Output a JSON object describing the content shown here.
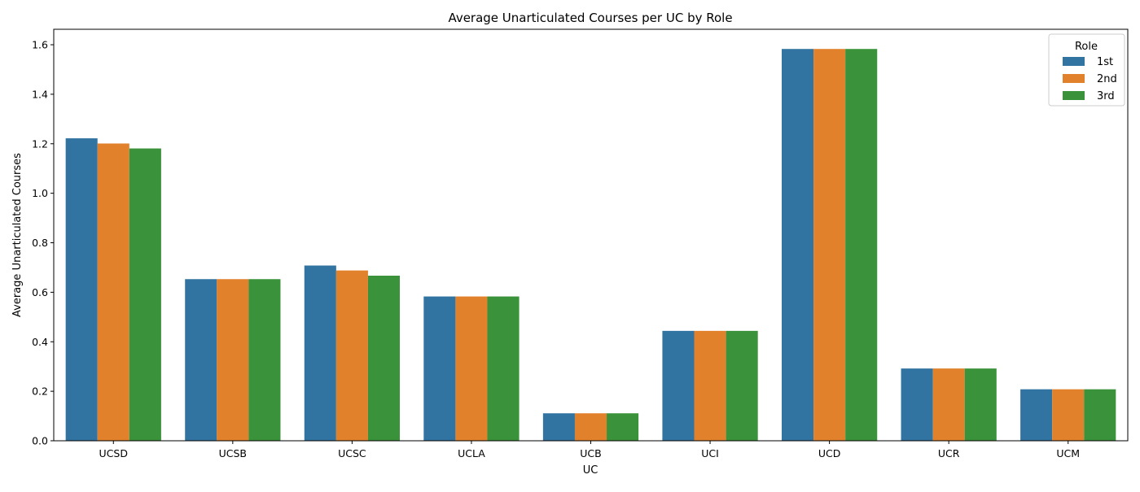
{
  "chart_data": {
    "type": "bar",
    "title": "Average Unarticulated Courses per UC by Role",
    "xlabel": "UC",
    "ylabel": "Average Unarticulated Courses",
    "categories": [
      "UCSD",
      "UCSB",
      "UCSC",
      "UCLA",
      "UCB",
      "UCI",
      "UCD",
      "UCR",
      "UCM"
    ],
    "series": [
      {
        "name": "1st",
        "color": "#3274a1",
        "values": [
          1.222,
          0.653,
          0.708,
          0.583,
          0.111,
          0.444,
          1.583,
          0.292,
          0.208
        ]
      },
      {
        "name": "2nd",
        "color": "#e1812c",
        "values": [
          1.201,
          0.653,
          0.688,
          0.583,
          0.111,
          0.444,
          1.583,
          0.292,
          0.208
        ]
      },
      {
        "name": "3rd",
        "color": "#3a923a",
        "values": [
          1.181,
          0.653,
          0.667,
          0.583,
          0.111,
          0.444,
          1.583,
          0.292,
          0.208
        ]
      }
    ],
    "ylim": [
      0,
      1.6625
    ],
    "yticks": [
      "0.0",
      "0.2",
      "0.4",
      "0.6",
      "0.8",
      "1.0",
      "1.2",
      "1.4",
      "1.6"
    ],
    "legend": {
      "title": "Role",
      "placement": "top-right"
    },
    "grid": false
  }
}
